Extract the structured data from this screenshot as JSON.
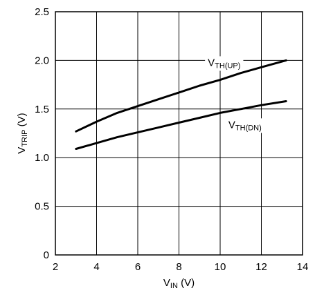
{
  "chart_data": {
    "type": "line",
    "title": "",
    "xlabel": {
      "main": "V",
      "sub": "IN",
      "unit": " (V)"
    },
    "ylabel": {
      "main": "V",
      "sub": "TRIP",
      "unit": " (V)"
    },
    "xlim": [
      2,
      14
    ],
    "ylim": [
      0,
      2.5
    ],
    "xticks": [
      2,
      4,
      6,
      8,
      10,
      12,
      14
    ],
    "yticks": [
      0,
      0.5,
      1.0,
      1.5,
      2.0,
      2.5
    ],
    "xtick_labels": [
      "2",
      "4",
      "6",
      "8",
      "10",
      "12",
      "14"
    ],
    "ytick_labels": [
      "0",
      "0.5",
      "1.0",
      "1.5",
      "2.0",
      "2.5"
    ],
    "grid": true,
    "series": [
      {
        "name": {
          "main": "V",
          "sub": "TH(UP)"
        },
        "x": [
          3,
          4,
          5,
          6,
          7,
          8,
          9,
          10,
          11,
          12,
          13.2
        ],
        "values": [
          1.27,
          1.37,
          1.46,
          1.53,
          1.6,
          1.67,
          1.74,
          1.8,
          1.87,
          1.93,
          2.0
        ]
      },
      {
        "name": {
          "main": "V",
          "sub": "TH(DN)"
        },
        "x": [
          3,
          4,
          5,
          6,
          7,
          8,
          9,
          10,
          11,
          12,
          13.2
        ],
        "values": [
          1.09,
          1.15,
          1.21,
          1.26,
          1.31,
          1.36,
          1.41,
          1.46,
          1.5,
          1.54,
          1.58
        ]
      }
    ]
  }
}
